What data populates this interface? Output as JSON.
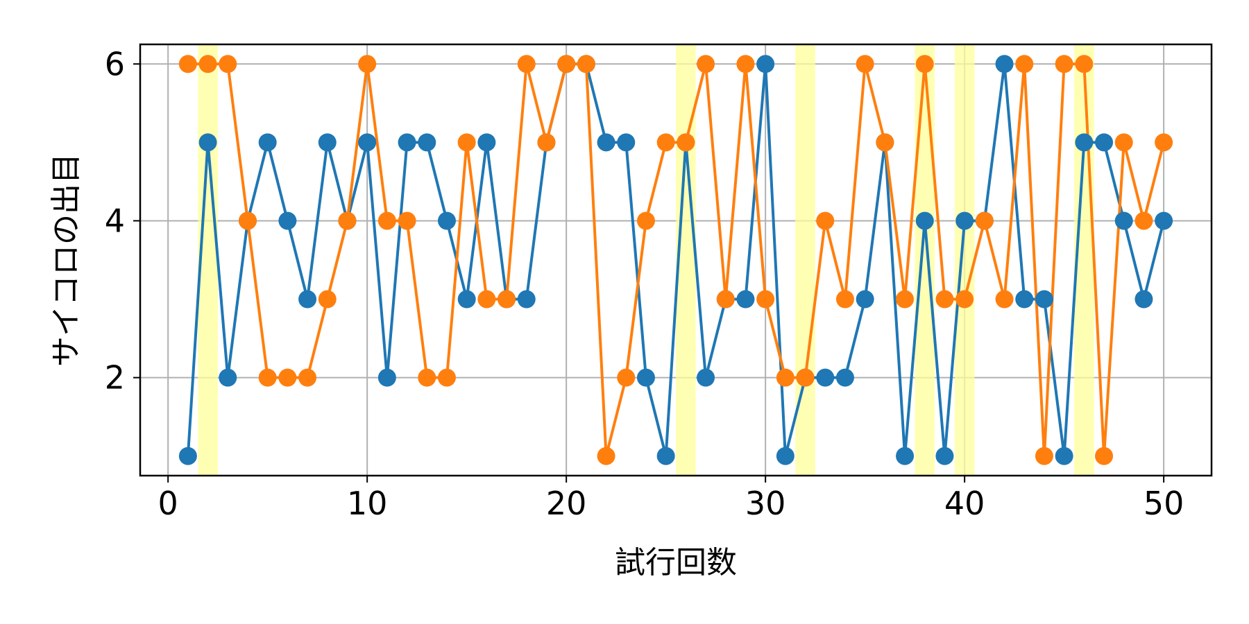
{
  "chart_data": {
    "type": "line",
    "title": "",
    "xlabel": "試行回数",
    "ylabel": "サイコロの出目",
    "xlim": [
      -1.4,
      52.4
    ],
    "ylim": [
      0.75,
      6.25
    ],
    "xticks": [
      0,
      10,
      20,
      30,
      40,
      50
    ],
    "yticks": [
      2,
      4,
      6
    ],
    "grid": true,
    "x": [
      1,
      2,
      3,
      4,
      5,
      6,
      7,
      8,
      9,
      10,
      11,
      12,
      13,
      14,
      15,
      16,
      17,
      18,
      19,
      20,
      21,
      22,
      23,
      24,
      25,
      26,
      27,
      28,
      29,
      30,
      31,
      32,
      33,
      34,
      35,
      36,
      37,
      38,
      39,
      40,
      41,
      42,
      43,
      44,
      45,
      46,
      47,
      48,
      49,
      50
    ],
    "series": [
      {
        "color": "#1f77b4",
        "values": [
          1,
          5,
          2,
          4,
          5,
          4,
          3,
          5,
          4,
          5,
          2,
          5,
          5,
          4,
          3,
          5,
          3,
          3,
          5,
          6,
          6,
          5,
          5,
          2,
          1,
          5,
          2,
          3,
          3,
          6,
          1,
          2,
          2,
          2,
          3,
          5,
          1,
          4,
          1,
          4,
          4,
          6,
          3,
          3,
          1,
          5,
          5,
          4,
          3,
          4
        ]
      },
      {
        "color": "#ff7f0e",
        "values": [
          6,
          6,
          6,
          4,
          2,
          2,
          2,
          3,
          4,
          6,
          4,
          4,
          2,
          2,
          5,
          3,
          3,
          6,
          5,
          6,
          6,
          1,
          2,
          4,
          5,
          5,
          6,
          3,
          6,
          3,
          2,
          2,
          4,
          3,
          6,
          5,
          3,
          6,
          3,
          3,
          4,
          3,
          6,
          1,
          6,
          6,
          1,
          5,
          4,
          5
        ]
      }
    ],
    "highlight_color": "#ffff99",
    "highlights": [
      2,
      26,
      32,
      38,
      40,
      46
    ]
  }
}
